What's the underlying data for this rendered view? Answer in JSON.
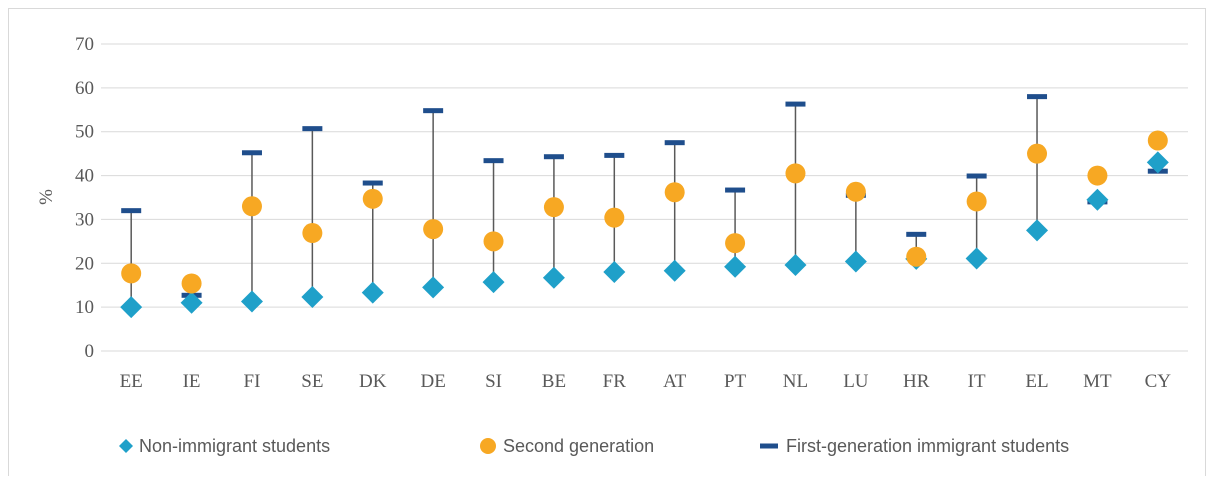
{
  "chart_data": {
    "type": "scatter",
    "title": "",
    "xlabel": "",
    "ylabel": "%",
    "ylim": [
      0,
      70
    ],
    "yticks": [
      0,
      10,
      20,
      30,
      40,
      50,
      60,
      70
    ],
    "grid": true,
    "legend_position": "bottom",
    "categories": [
      "EE",
      "IE",
      "FI",
      "SE",
      "DK",
      "DE",
      "SI",
      "BE",
      "FR",
      "AT",
      "PT",
      "NL",
      "LU",
      "HR",
      "IT",
      "EL",
      "MT",
      "CY"
    ],
    "series": [
      {
        "name": "Non-immigrant students",
        "marker": "diamond",
        "color": "#1fa0c9",
        "values": [
          10,
          11,
          11.3,
          12.3,
          13.3,
          14.5,
          15.7,
          16.7,
          18,
          18.3,
          19.2,
          19.6,
          20.4,
          21,
          21.1,
          27.5,
          34.5,
          43
        ]
      },
      {
        "name": "Second generation",
        "marker": "circle",
        "color": "#f7a823",
        "values": [
          17.7,
          15.4,
          33,
          26.9,
          34.7,
          27.8,
          25,
          32.8,
          30.4,
          36.2,
          24.6,
          40.5,
          36.3,
          21.5,
          34.1,
          45,
          40,
          48
        ]
      },
      {
        "name": "First-generation immigrant students",
        "marker": "dash",
        "color": "#1f4e8c",
        "values": [
          32,
          12.7,
          45.2,
          50.7,
          38.3,
          54.8,
          43.4,
          44.3,
          44.6,
          47.5,
          36.7,
          56.3,
          35.5,
          26.6,
          39.9,
          58,
          34,
          41
        ]
      }
    ],
    "whisker_color": "#595959",
    "grid_color": "#d9d9d9"
  }
}
